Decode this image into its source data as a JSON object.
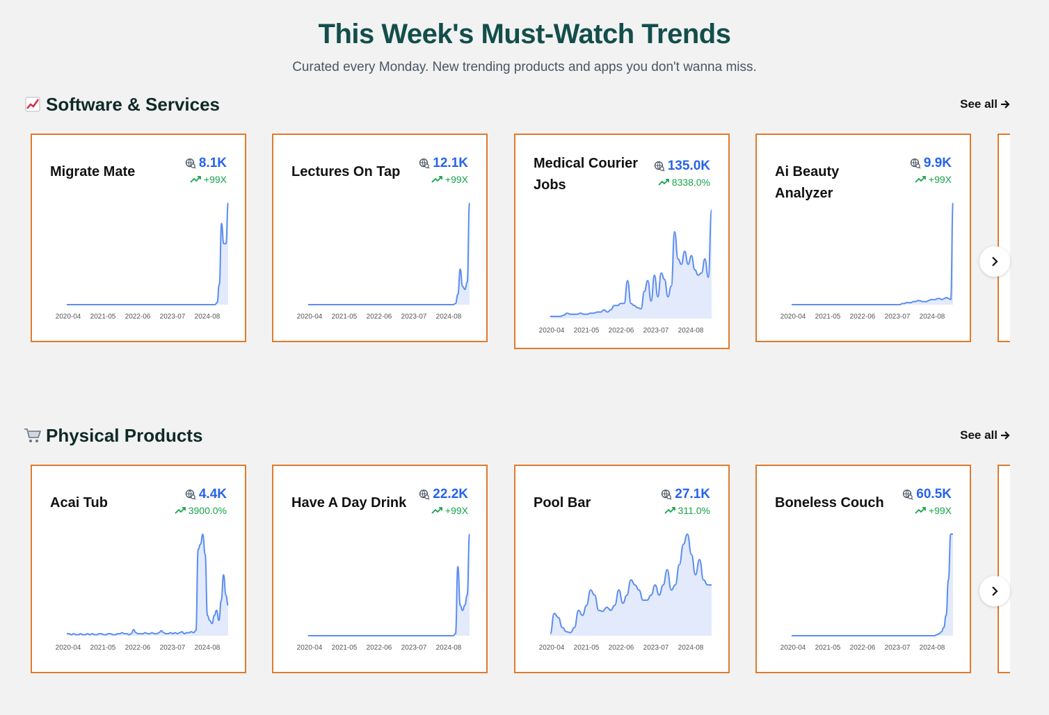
{
  "hero": {
    "title": "This Week's Must-Watch Trends",
    "subtitle": "Curated every Monday. New trending products and apps you don't wanna miss."
  },
  "sections": [
    {
      "id": "software",
      "title": "Software & Services",
      "icon": "chart-increasing-icon",
      "see_all": "See all",
      "cards": [
        {
          "name": "Migrate Mate",
          "volume": "8.1K",
          "growth": "+99X",
          "trend": [
            0,
            0,
            0,
            0,
            0,
            0,
            0,
            0,
            0,
            0,
            0,
            0,
            0,
            0,
            0,
            0,
            0,
            0,
            0,
            0,
            0,
            0,
            0,
            0,
            0,
            0,
            0,
            0,
            0,
            0,
            0,
            0,
            0,
            0,
            0,
            0,
            0,
            0,
            0,
            0,
            0,
            0,
            0,
            0,
            0,
            0,
            0,
            0,
            0,
            0,
            0,
            0,
            0,
            0,
            0,
            0,
            0,
            0,
            0,
            0,
            0,
            0,
            0,
            0,
            0,
            0,
            0,
            0,
            2,
            20,
            80,
            60,
            60,
            100
          ]
        },
        {
          "name": "Lectures On Tap",
          "volume": "12.1K",
          "growth": "+99X",
          "trend": [
            0,
            0,
            0,
            0,
            0,
            0,
            0,
            0,
            0,
            0,
            0,
            0,
            0,
            0,
            0,
            0,
            0,
            0,
            0,
            0,
            0,
            0,
            0,
            0,
            0,
            0,
            0,
            0,
            0,
            0,
            0,
            0,
            0,
            0,
            0,
            0,
            0,
            0,
            0,
            0,
            0,
            0,
            0,
            0,
            0,
            0,
            0,
            0,
            0,
            0,
            0,
            0,
            0,
            0,
            0,
            0,
            0,
            0,
            0,
            0,
            0,
            0,
            0,
            1,
            10,
            35,
            18,
            15,
            22,
            100
          ]
        },
        {
          "name": "Medical Courier Jobs",
          "volume": "135.0K",
          "growth": "8338.0%",
          "trend": [
            2,
            2,
            2,
            2,
            3,
            5,
            4,
            4,
            4,
            5,
            4,
            4,
            5,
            5,
            6,
            6,
            8,
            6,
            8,
            12,
            12,
            14,
            14,
            35,
            14,
            12,
            10,
            9,
            25,
            35,
            16,
            40,
            20,
            42,
            36,
            20,
            30,
            80,
            55,
            50,
            62,
            50,
            58,
            45,
            40,
            42,
            55,
            38,
            100
          ]
        },
        {
          "name": "Ai Beauty Analyzer",
          "volume": "9.9K",
          "growth": "+99X",
          "trend": [
            0,
            0,
            0,
            0,
            0,
            0,
            0,
            0,
            0,
            0,
            0,
            0,
            0,
            0,
            0,
            0,
            0,
            0,
            0,
            0,
            0,
            0,
            0,
            0,
            0,
            0,
            0,
            0,
            0,
            0,
            0,
            0,
            0,
            0,
            0,
            0,
            0,
            0,
            0,
            0,
            0,
            0,
            0,
            0,
            0,
            0,
            0,
            0,
            0,
            0,
            1,
            1,
            2,
            2,
            2,
            3,
            3,
            4,
            4,
            3,
            3,
            3,
            4,
            5,
            5,
            5,
            6,
            6,
            5,
            6,
            7,
            6,
            5,
            100
          ]
        }
      ]
    },
    {
      "id": "physical",
      "title": "Physical Products",
      "icon": "shopping-cart-icon",
      "see_all": "See all",
      "cards": [
        {
          "name": "Acai Tub",
          "volume": "4.4K",
          "growth": "3900.0%",
          "trend": [
            2,
            2,
            1,
            2,
            1,
            1,
            2,
            1,
            1,
            2,
            1,
            2,
            1,
            1,
            2,
            2,
            1,
            1,
            2,
            2,
            1,
            1,
            2,
            2,
            3,
            2,
            2,
            1,
            2,
            6,
            3,
            2,
            2,
            2,
            3,
            2,
            2,
            3,
            2,
            2,
            3,
            5,
            3,
            2,
            2,
            3,
            2,
            3,
            2,
            3,
            4,
            2,
            3,
            3,
            4,
            3,
            5,
            85,
            90,
            100,
            80,
            20,
            15,
            12,
            20,
            25,
            15,
            35,
            60,
            40,
            30
          ]
        },
        {
          "name": "Have A Day Drink",
          "volume": "22.2K",
          "growth": "+99X",
          "trend": [
            0,
            0,
            0,
            0,
            0,
            0,
            0,
            0,
            0,
            0,
            0,
            0,
            0,
            0,
            0,
            0,
            0,
            0,
            0,
            0,
            0,
            0,
            0,
            0,
            0,
            0,
            0,
            0,
            0,
            0,
            0,
            0,
            0,
            0,
            0,
            0,
            0,
            0,
            0,
            0,
            0,
            0,
            0,
            0,
            0,
            0,
            0,
            0,
            0,
            0,
            0,
            0,
            0,
            0,
            0,
            0,
            0,
            0,
            0,
            0,
            0,
            0,
            0,
            2,
            68,
            30,
            25,
            30,
            40,
            100
          ]
        },
        {
          "name": "Pool Bar",
          "volume": "27.1K",
          "growth": "311.0%",
          "trend": [
            2,
            22,
            18,
            8,
            4,
            3,
            8,
            25,
            20,
            30,
            45,
            40,
            25,
            24,
            28,
            25,
            30,
            45,
            32,
            40,
            55,
            50,
            45,
            35,
            35,
            40,
            50,
            40,
            50,
            65,
            45,
            50,
            70,
            90,
            100,
            80,
            60,
            75,
            55,
            50,
            50
          ]
        },
        {
          "name": "Boneless Couch",
          "volume": "60.5K",
          "growth": "+99X",
          "trend": [
            0,
            0,
            0,
            0,
            0,
            0,
            0,
            0,
            0,
            0,
            0,
            0,
            0,
            0,
            0,
            0,
            0,
            0,
            0,
            0,
            0,
            0,
            0,
            0,
            0,
            0,
            0,
            0,
            0,
            0,
            0,
            0,
            0,
            0,
            0,
            0,
            0,
            0,
            0,
            0,
            0,
            0,
            0,
            0,
            0,
            0,
            0,
            0,
            0,
            0,
            0,
            0,
            0,
            0,
            0,
            0,
            0,
            0,
            0,
            0,
            0,
            0,
            0,
            1,
            2,
            4,
            8,
            20,
            55,
            100,
            100
          ]
        }
      ]
    }
  ],
  "x_ticks": [
    "2020-04",
    "2021-05",
    "2022-06",
    "2023-07",
    "2024-08"
  ],
  "colors": {
    "accent": "#2563eb",
    "growth": "#16a34a",
    "border": "#e07a2a",
    "line": "#5b8def",
    "fill": "#dbe5fb"
  },
  "icons": {
    "search_volume": "globe-search-icon",
    "growth": "trending-up-icon",
    "next": "chevron-right-icon",
    "see_all": "arrow-right-icon"
  }
}
